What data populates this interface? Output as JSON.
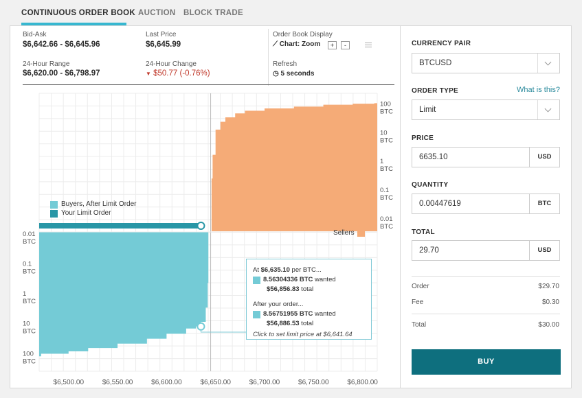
{
  "tabs": [
    {
      "label": "CONTINUOUS ORDER BOOK"
    },
    {
      "label": "AUCTION"
    },
    {
      "label": "BLOCK TRADE"
    }
  ],
  "stats": {
    "bid_ask_label": "Bid-Ask",
    "bid_ask_value": "$6,642.66 - $6,645.96",
    "last_price_label": "Last Price",
    "last_price_value": "$6,645.99",
    "range_label": "24-Hour Range",
    "range_value": "$6,620.00 - $6,798.97",
    "change_label": "24-Hour Change",
    "change_value": "$50.77 (-0.76%)",
    "display_label": "Order Book Display",
    "chart_zoom_label": "Chart: Zoom",
    "zoom_in": "+",
    "zoom_out": "-",
    "refresh_label": "Refresh",
    "refresh_value": "5 seconds"
  },
  "legend": {
    "buyers_after": "Buyers, After Limit Order",
    "your_limit": "Your Limit Order",
    "sellers": "Sellers"
  },
  "tooltip": {
    "line1_prefix": "At ",
    "line1_price": "$6,635.10",
    "line1_suffix": " per BTC...",
    "wanted1_amount": "8.56304336 BTC",
    "wanted1_suffix": " wanted",
    "total1_amount": "$56,856.83",
    "total1_suffix": " total",
    "after_label": "After your order...",
    "wanted2_amount": "8.56751955 BTC",
    "wanted2_suffix": " wanted",
    "total2_amount": "$56,886.53",
    "total2_suffix": " total",
    "footer": "Click to set limit price at $6,641.64"
  },
  "form": {
    "currency_pair_label": "CURRENCY PAIR",
    "currency_pair_value": "BTCUSD",
    "order_type_label": "ORDER TYPE",
    "what_is_this": "What is this?",
    "order_type_value": "Limit",
    "price_label": "PRICE",
    "price_value": "6635.10",
    "price_unit": "USD",
    "quantity_label": "QUANTITY",
    "quantity_value": "0.00447619",
    "quantity_unit": "BTC",
    "total_label": "TOTAL",
    "total_value": "29.70",
    "total_unit": "USD"
  },
  "summary": {
    "order_label": "Order",
    "order_value": "$29.70",
    "fee_label": "Fee",
    "fee_value": "$0.30",
    "total_label": "Total",
    "total_value": "$30.00"
  },
  "buy_button": "BUY",
  "colors": {
    "buyers": "#74cbd6",
    "your_limit": "#2896a6",
    "sellers": "#f5ab77",
    "buy_button": "#0e6f7e",
    "tab_accent": "#37b7d0",
    "negative": "#c0392b"
  },
  "chart_data": {
    "type": "area",
    "x_axis": {
      "range": [
        6470,
        6815
      ],
      "ticks": [
        "$6,500.00",
        "$6,550.00",
        "$6,600.00",
        "$6,650.00",
        "$6,700.00",
        "$6,750.00",
        "$6,800.00"
      ]
    },
    "y_axis_log_scale": true,
    "sellers_y_ticks": [
      "100 BTC",
      "10 BTC",
      "1 BTC",
      "0.1 BTC",
      "0.01 BTC"
    ],
    "buyers_y_ticks": [
      "0.01 BTC",
      "0.1 BTC",
      "1 BTC",
      "10 BTC",
      "100 BTC"
    ],
    "sellers": {
      "name": "Sellers",
      "x": [
        6645.96,
        6647,
        6650,
        6655,
        6660,
        6670,
        6680,
        6700,
        6730,
        6760,
        6790,
        6812
      ],
      "y": [
        0.3,
        2,
        15,
        28,
        40,
        55,
        68,
        82,
        95,
        110,
        120,
        125
      ]
    },
    "buyers": {
      "name": "Buyers, After Limit Order",
      "x": [
        6642.66,
        6642,
        6640,
        6635.1,
        6630,
        6620,
        6600,
        6580,
        6550,
        6520,
        6500,
        6472
      ],
      "y": [
        0.3,
        2,
        6,
        8.57,
        10,
        15,
        22,
        32,
        45,
        58,
        70,
        85
      ]
    },
    "your_limit_order": {
      "price": 6635.1,
      "quantity": 0.00447619
    }
  }
}
